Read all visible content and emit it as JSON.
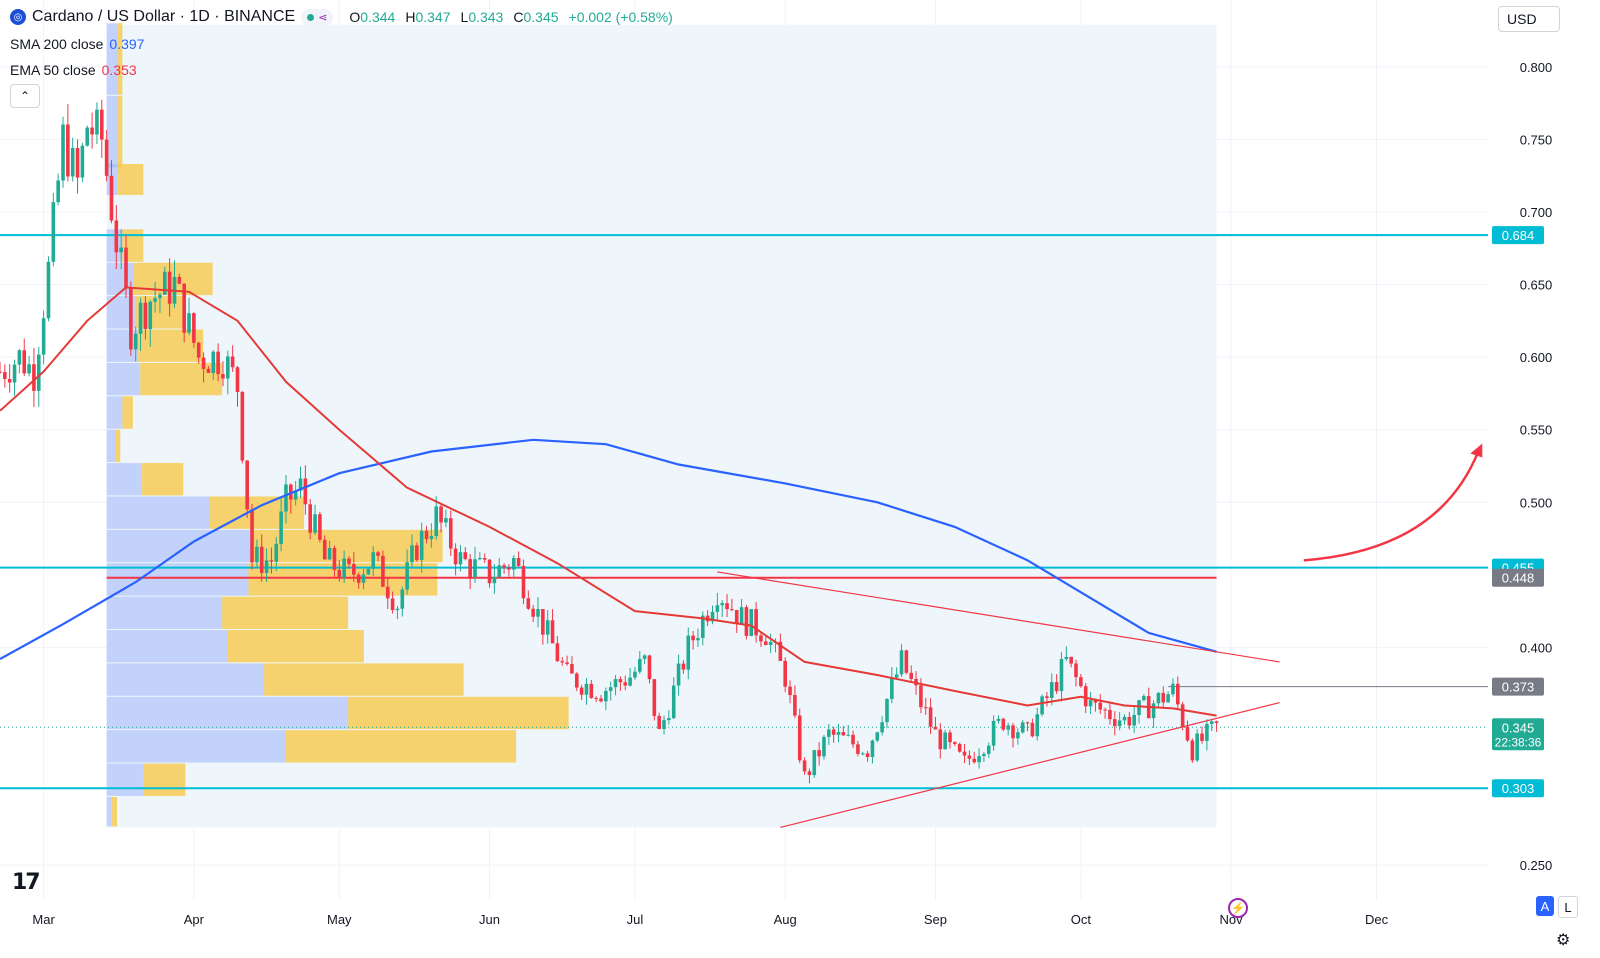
{
  "header": {
    "symbol_icon": "cardano-logo-icon",
    "title": "Cardano / US Dollar · 1D · BINANCE",
    "ohlc": [
      {
        "k": "O",
        "v": "0.344"
      },
      {
        "k": "H",
        "v": "0.347"
      },
      {
        "k": "L",
        "v": "0.343"
      },
      {
        "k": "C",
        "v": "0.345"
      },
      {
        "k": "",
        "v": "+0.002 (+0.58%)"
      }
    ]
  },
  "indicators": {
    "sma": {
      "label": "SMA 200 close",
      "value": "0.397",
      "color": "#2962ff"
    },
    "ema": {
      "label": "EMA 50 close",
      "value": "0.353",
      "color": "#f23645"
    }
  },
  "currency": "USD",
  "bottom": {
    "auto_label": "A",
    "log_label": "L"
  },
  "colors": {
    "up": "#22ab94",
    "down": "#f23645",
    "level": "#00bcd4",
    "sma": "#2962ff",
    "ema": "#e53935",
    "poc": "#f23645",
    "profile_bg": "#eef6fc"
  },
  "chart_data": {
    "type": "candlestick",
    "title": "Cardano / US Dollar · 1D · BINANCE",
    "x_tick_labels": [
      "Mar",
      "Apr",
      "May",
      "Jun",
      "Jul",
      "Aug",
      "Sep",
      "Oct",
      "Nov",
      "Dec"
    ],
    "x_ticks": [
      "2024-03-01",
      "2024-04-01",
      "2024-05-01",
      "2024-06-01",
      "2024-07-01",
      "2024-08-01",
      "2024-09-01",
      "2024-10-01",
      "2024-11-01",
      "2024-12-01"
    ],
    "x_range": [
      "2024-02-21",
      "2024-12-24"
    ],
    "y_tick_labels": [
      "0.800",
      "0.750",
      "0.700",
      "0.650",
      "0.600",
      "0.550",
      "0.500",
      "0.400",
      "0.250"
    ],
    "y_ticks": [
      0.8,
      0.75,
      0.7,
      0.65,
      0.6,
      0.55,
      0.5,
      0.4,
      0.25
    ],
    "ylim": [
      0.226,
      0.846
    ],
    "horizontal_levels": [
      {
        "label": "0.684",
        "value": 0.684
      },
      {
        "label": "0.455",
        "value": 0.455
      },
      {
        "label": "0.303",
        "value": 0.303
      }
    ],
    "point_of_control": {
      "label": "0.448",
      "value": 0.448,
      "start": "2024-03-14",
      "end": "2024-10-29"
    },
    "resistance_marker": {
      "label": "0.373",
      "value": 0.373,
      "start": "2024-10-19"
    },
    "last_price": {
      "label": "0.345",
      "value": 0.345,
      "countdown": "22:38:36"
    },
    "triangle_upper": [
      [
        "2024-07-18",
        0.452
      ],
      [
        "2024-11-11",
        0.39
      ]
    ],
    "triangle_lower": [
      [
        "2024-07-31",
        0.276
      ],
      [
        "2024-11-11",
        0.362
      ]
    ],
    "projection_arrow": [
      [
        "2024-11-16",
        0.46
      ],
      [
        "2024-12-22",
        0.535
      ]
    ],
    "profile_range": {
      "start": "2024-03-14",
      "end": "2024-10-29",
      "low": 0.276,
      "high": 0.829
    },
    "volume_profile": [
      {
        "low": 0.78,
        "high": 0.83,
        "up": 0.1,
        "down": 0.05
      },
      {
        "low": 0.73,
        "high": 0.78,
        "up": 0.1,
        "down": 0.05
      },
      {
        "low": 0.711,
        "high": 0.733,
        "up": 0.1,
        "down": 0.25
      },
      {
        "low": 0.665,
        "high": 0.688,
        "up": 0.15,
        "down": 0.2
      },
      {
        "low": 0.642,
        "high": 0.665,
        "up": 0.26,
        "down": 0.75
      },
      {
        "low": 0.619,
        "high": 0.642,
        "up": 0.28,
        "down": 0.45
      },
      {
        "low": 0.596,
        "high": 0.619,
        "up": 0.3,
        "down": 0.62
      },
      {
        "low": 0.573,
        "high": 0.596,
        "up": 0.32,
        "down": 0.78
      },
      {
        "low": 0.55,
        "high": 0.573,
        "up": 0.15,
        "down": 0.1
      },
      {
        "low": 0.527,
        "high": 0.55,
        "up": 0.08,
        "down": 0.05
      },
      {
        "low": 0.504,
        "high": 0.527,
        "up": 0.33,
        "down": 0.4
      },
      {
        "low": 0.481,
        "high": 0.504,
        "up": 0.98,
        "down": 0.9
      },
      {
        "low": 0.458,
        "high": 0.481,
        "up": 1.4,
        "down": 1.8
      },
      {
        "low": 0.435,
        "high": 0.458,
        "up": 1.35,
        "down": 1.8
      },
      {
        "low": 0.412,
        "high": 0.435,
        "up": 1.1,
        "down": 1.2
      },
      {
        "low": 0.389,
        "high": 0.412,
        "up": 1.15,
        "down": 1.3
      },
      {
        "low": 0.366,
        "high": 0.389,
        "up": 1.5,
        "down": 1.9
      },
      {
        "low": 0.343,
        "high": 0.366,
        "up": 2.3,
        "down": 2.1
      },
      {
        "low": 0.32,
        "high": 0.343,
        "up": 1.7,
        "down": 2.2
      },
      {
        "low": 0.297,
        "high": 0.32,
        "up": 0.35,
        "down": 0.4
      },
      {
        "low": 0.276,
        "high": 0.297,
        "up": 0.05,
        "down": 0.05
      }
    ],
    "sma200": [
      [
        "2024-02-21",
        0.392
      ],
      [
        "2024-03-05",
        0.416
      ],
      [
        "2024-03-20",
        0.445
      ],
      [
        "2024-04-01",
        0.473
      ],
      [
        "2024-04-15",
        0.498
      ],
      [
        "2024-05-01",
        0.52
      ],
      [
        "2024-05-20",
        0.535
      ],
      [
        "2024-06-10",
        0.543
      ],
      [
        "2024-06-25",
        0.54
      ],
      [
        "2024-07-10",
        0.526
      ],
      [
        "2024-08-01",
        0.513
      ],
      [
        "2024-08-20",
        0.5
      ],
      [
        "2024-09-05",
        0.483
      ],
      [
        "2024-09-20",
        0.46
      ],
      [
        "2024-10-01",
        0.438
      ],
      [
        "2024-10-15",
        0.41
      ],
      [
        "2024-10-29",
        0.397
      ]
    ],
    "ema50": [
      [
        "2024-02-21",
        0.563
      ],
      [
        "2024-03-01",
        0.59
      ],
      [
        "2024-03-10",
        0.625
      ],
      [
        "2024-03-18",
        0.648
      ],
      [
        "2024-03-31",
        0.645
      ],
      [
        "2024-04-10",
        0.625
      ],
      [
        "2024-04-20",
        0.583
      ],
      [
        "2024-05-01",
        0.55
      ],
      [
        "2024-05-15",
        0.51
      ],
      [
        "2024-06-01",
        0.483
      ],
      [
        "2024-06-15",
        0.458
      ],
      [
        "2024-07-01",
        0.425
      ],
      [
        "2024-07-15",
        0.42
      ],
      [
        "2024-07-25",
        0.415
      ],
      [
        "2024-08-05",
        0.39
      ],
      [
        "2024-08-20",
        0.381
      ],
      [
        "2024-09-05",
        0.37
      ],
      [
        "2024-09-20",
        0.36
      ],
      [
        "2024-10-01",
        0.366
      ],
      [
        "2024-10-10",
        0.36
      ],
      [
        "2024-10-20",
        0.358
      ],
      [
        "2024-10-29",
        0.353
      ]
    ],
    "close_path": [
      [
        "2024-02-21",
        0.59
      ],
      [
        "2024-02-25",
        0.6
      ],
      [
        "2024-02-28",
        0.59
      ],
      [
        "2024-03-02",
        0.66
      ],
      [
        "2024-03-05",
        0.75
      ],
      [
        "2024-03-08",
        0.72
      ],
      [
        "2024-03-10",
        0.76
      ],
      [
        "2024-03-13",
        0.75
      ],
      [
        "2024-03-16",
        0.68
      ],
      [
        "2024-03-19",
        0.62
      ],
      [
        "2024-03-23",
        0.64
      ],
      [
        "2024-03-28",
        0.65
      ],
      [
        "2024-04-02",
        0.6
      ],
      [
        "2024-04-07",
        0.6
      ],
      [
        "2024-04-10",
        0.58
      ],
      [
        "2024-04-13",
        0.46
      ],
      [
        "2024-04-17",
        0.46
      ],
      [
        "2024-04-20",
        0.5
      ],
      [
        "2024-04-23",
        0.51
      ],
      [
        "2024-04-28",
        0.46
      ],
      [
        "2024-05-03",
        0.45
      ],
      [
        "2024-05-08",
        0.46
      ],
      [
        "2024-05-13",
        0.43
      ],
      [
        "2024-05-17",
        0.47
      ],
      [
        "2024-05-21",
        0.49
      ],
      [
        "2024-05-26",
        0.46
      ],
      [
        "2024-06-01",
        0.45
      ],
      [
        "2024-06-06",
        0.46
      ],
      [
        "2024-06-10",
        0.43
      ],
      [
        "2024-06-17",
        0.38
      ],
      [
        "2024-06-24",
        0.37
      ],
      [
        "2024-06-30",
        0.38
      ],
      [
        "2024-07-03",
        0.39
      ],
      [
        "2024-07-06",
        0.34
      ],
      [
        "2024-07-12",
        0.4
      ],
      [
        "2024-07-18",
        0.44
      ],
      [
        "2024-07-23",
        0.42
      ],
      [
        "2024-07-28",
        0.41
      ],
      [
        "2024-08-01",
        0.38
      ],
      [
        "2024-08-05",
        0.31
      ],
      [
        "2024-08-10",
        0.34
      ],
      [
        "2024-08-18",
        0.33
      ],
      [
        "2024-08-25",
        0.39
      ],
      [
        "2024-09-01",
        0.34
      ],
      [
        "2024-09-07",
        0.32
      ],
      [
        "2024-09-15",
        0.35
      ],
      [
        "2024-09-20",
        0.34
      ],
      [
        "2024-09-28",
        0.39
      ],
      [
        "2024-10-03",
        0.36
      ],
      [
        "2024-10-10",
        0.35
      ],
      [
        "2024-10-15",
        0.36
      ],
      [
        "2024-10-20",
        0.37
      ],
      [
        "2024-10-24",
        0.33
      ],
      [
        "2024-10-29",
        0.345
      ]
    ]
  }
}
